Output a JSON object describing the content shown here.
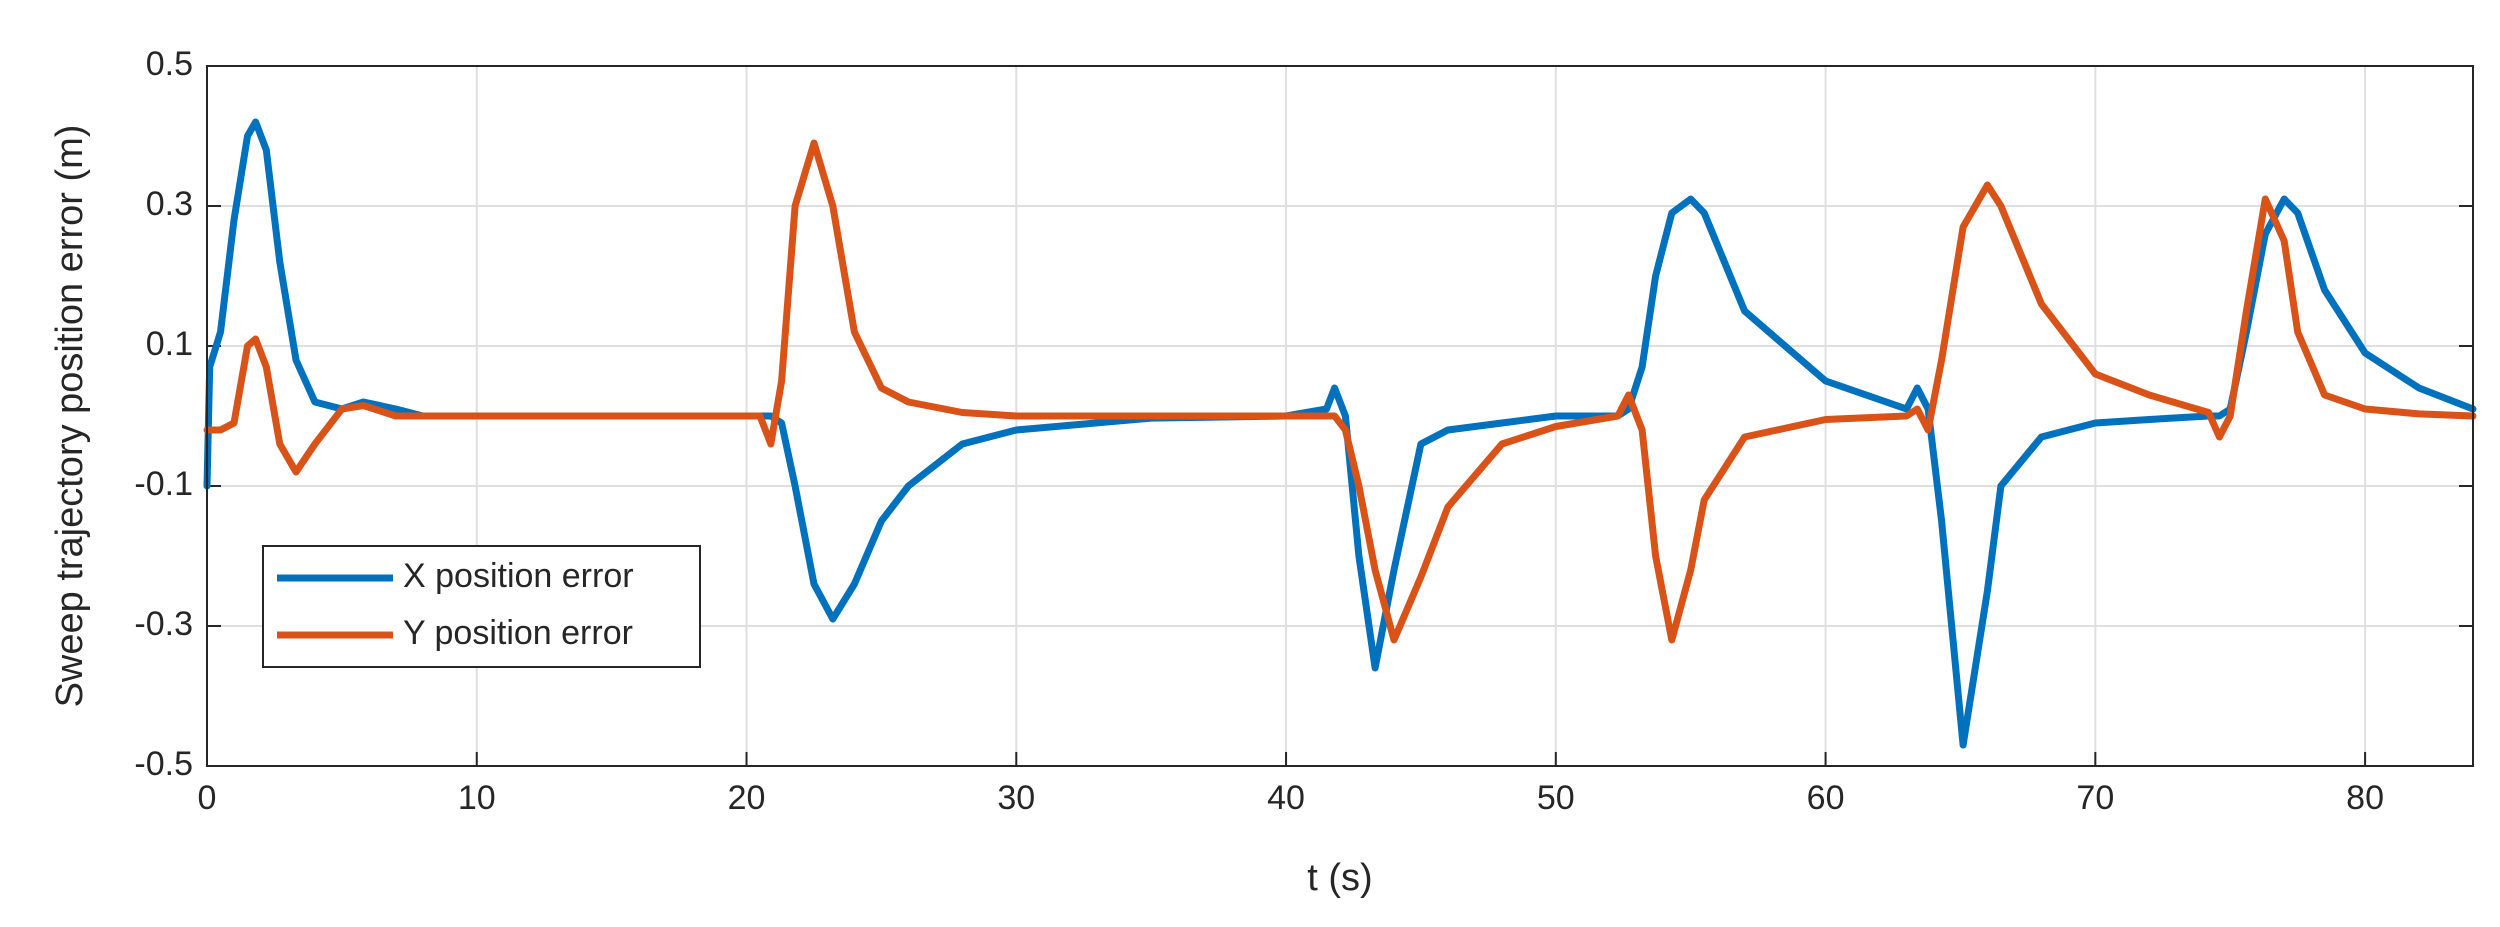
{
  "chart_data": {
    "type": "line",
    "xlabel": "t (s)",
    "ylabel": "Sweep trajectory position error (m)",
    "x": [
      0,
      0.1,
      0.5,
      1,
      1.5,
      1.8,
      2.2,
      2.7,
      3.3,
      4,
      5,
      5.8,
      7,
      8,
      10,
      15,
      20,
      20.5,
      20.9,
      21.3,
      21.8,
      22.5,
      23.2,
      24,
      25,
      26,
      28,
      30,
      35,
      40,
      41.5,
      41.8,
      42.2,
      42.7,
      43.3,
      44,
      45,
      46,
      48,
      50,
      52.3,
      52.7,
      53.2,
      53.7,
      54.3,
      55,
      55.5,
      57,
      60,
      63,
      63.4,
      63.8,
      64.3,
      65.1,
      66,
      66.5,
      68,
      70,
      72,
      74.2,
      74.6,
      75,
      75.6,
      76.3,
      77,
      77.5,
      78.5,
      80,
      82,
      84
    ],
    "series": [
      {
        "name": "X position error",
        "color": "#0072BD",
        "values": [
          -0.1,
          0.07,
          0.12,
          0.28,
          0.4,
          0.42,
          0.38,
          0.22,
          0.08,
          0.02,
          0.01,
          0.02,
          0.01,
          0,
          0,
          0,
          0,
          0,
          0,
          -0.01,
          -0.1,
          -0.24,
          -0.29,
          -0.24,
          -0.15,
          -0.1,
          -0.04,
          -0.02,
          -0.003,
          0,
          0.01,
          0.04,
          0,
          -0.2,
          -0.36,
          -0.22,
          -0.04,
          -0.02,
          -0.01,
          0,
          0,
          0.01,
          0.07,
          0.2,
          0.29,
          0.31,
          0.29,
          0.15,
          0.05,
          0.01,
          0.04,
          0.01,
          -0.15,
          -0.47,
          -0.25,
          -0.1,
          -0.03,
          -0.01,
          -0.005,
          0,
          0,
          0.01,
          0.12,
          0.26,
          0.31,
          0.29,
          0.18,
          0.09,
          0.04,
          0.01
        ]
      },
      {
        "name": "Y position error",
        "color": "#D95319",
        "values": [
          -0.02,
          -0.02,
          -0.02,
          -0.01,
          0.1,
          0.11,
          0.07,
          -0.04,
          -0.08,
          -0.04,
          0.01,
          0.015,
          0,
          0,
          0,
          0,
          0,
          0,
          -0.04,
          0.05,
          0.3,
          0.39,
          0.3,
          0.12,
          0.04,
          0.02,
          0.005,
          0,
          0,
          0,
          0,
          0,
          -0.02,
          -0.1,
          -0.22,
          -0.32,
          -0.23,
          -0.13,
          -0.04,
          -0.015,
          0,
          0.03,
          -0.02,
          -0.2,
          -0.32,
          -0.22,
          -0.12,
          -0.03,
          -0.005,
          0,
          0.01,
          -0.02,
          0.08,
          0.27,
          0.33,
          0.3,
          0.16,
          0.06,
          0.03,
          0.005,
          -0.03,
          0,
          0.15,
          0.31,
          0.25,
          0.12,
          0.03,
          0.01,
          0.003,
          0
        ]
      }
    ],
    "xlim": [
      0,
      84
    ],
    "xticks": [
      0,
      10,
      20,
      30,
      40,
      50,
      60,
      70,
      80
    ],
    "ylim": [
      -0.5,
      0.5
    ],
    "yticks": [
      -0.5,
      -0.3,
      -0.1,
      0.1,
      0.3,
      0.5
    ],
    "grid": true,
    "legend": "lower left"
  }
}
